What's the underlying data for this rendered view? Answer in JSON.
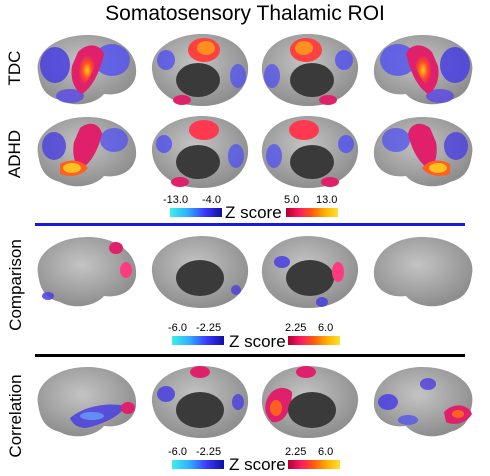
{
  "title": "Somatosensory Thalamic ROI",
  "rows": [
    {
      "label": "TDC"
    },
    {
      "label": "ADHD"
    },
    {
      "label": "Comparison"
    },
    {
      "label": "Correlation"
    }
  ],
  "colorbars": [
    {
      "neg_min": "-13.0",
      "neg_max": "-4.0",
      "z_label": "Z score",
      "pos_min": "5.0",
      "pos_max": "13.0"
    },
    {
      "neg_min": "-6.0",
      "neg_max": "-2.25",
      "z_label": "Z score",
      "pos_min": "2.25",
      "pos_max": "6.0"
    },
    {
      "neg_min": "-6.0",
      "neg_max": "-2.25",
      "z_label": "Z score",
      "pos_min": "2.25",
      "pos_max": "6.0"
    }
  ],
  "colors": {
    "divider_top": "#1a1adb",
    "divider_bottom": "#000000",
    "cortex": "#a8a8a8",
    "medial_wall": "#3a3a3a"
  }
}
